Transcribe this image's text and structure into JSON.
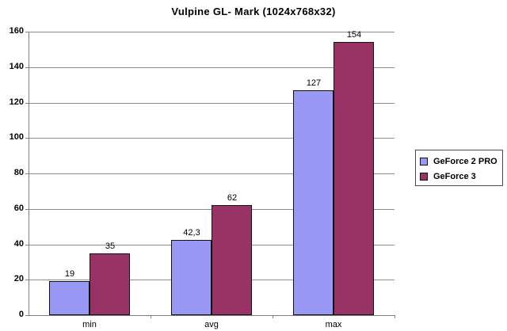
{
  "title": "Vulpine GL- Mark (1024x768x32)",
  "colors": {
    "series1": "#9999F5",
    "series2": "#993366",
    "bar_border": "#111111",
    "gridline": "#8c8c8c",
    "axis": "#808080",
    "legend_border": "#4a4a4a",
    "text": "#000000",
    "background": "#ffffff"
  },
  "chart_data": {
    "type": "bar",
    "title": "Vulpine GL- Mark (1024x768x32)",
    "categories": [
      "min",
      "avg",
      "max"
    ],
    "series": [
      {
        "name": "GeForce 2 PRO",
        "color": "#9999F5",
        "values": [
          19,
          42.3,
          127
        ],
        "labels": [
          "19",
          "42,3",
          "127"
        ]
      },
      {
        "name": "GeForce 3",
        "color": "#993366",
        "values": [
          35,
          62,
          154
        ],
        "labels": [
          "35",
          "62",
          "154"
        ]
      }
    ],
    "xlabel": "",
    "ylabel": "",
    "ylim": [
      0,
      160
    ],
    "ytick_step": 20,
    "grid": true,
    "legend_position": "right"
  }
}
